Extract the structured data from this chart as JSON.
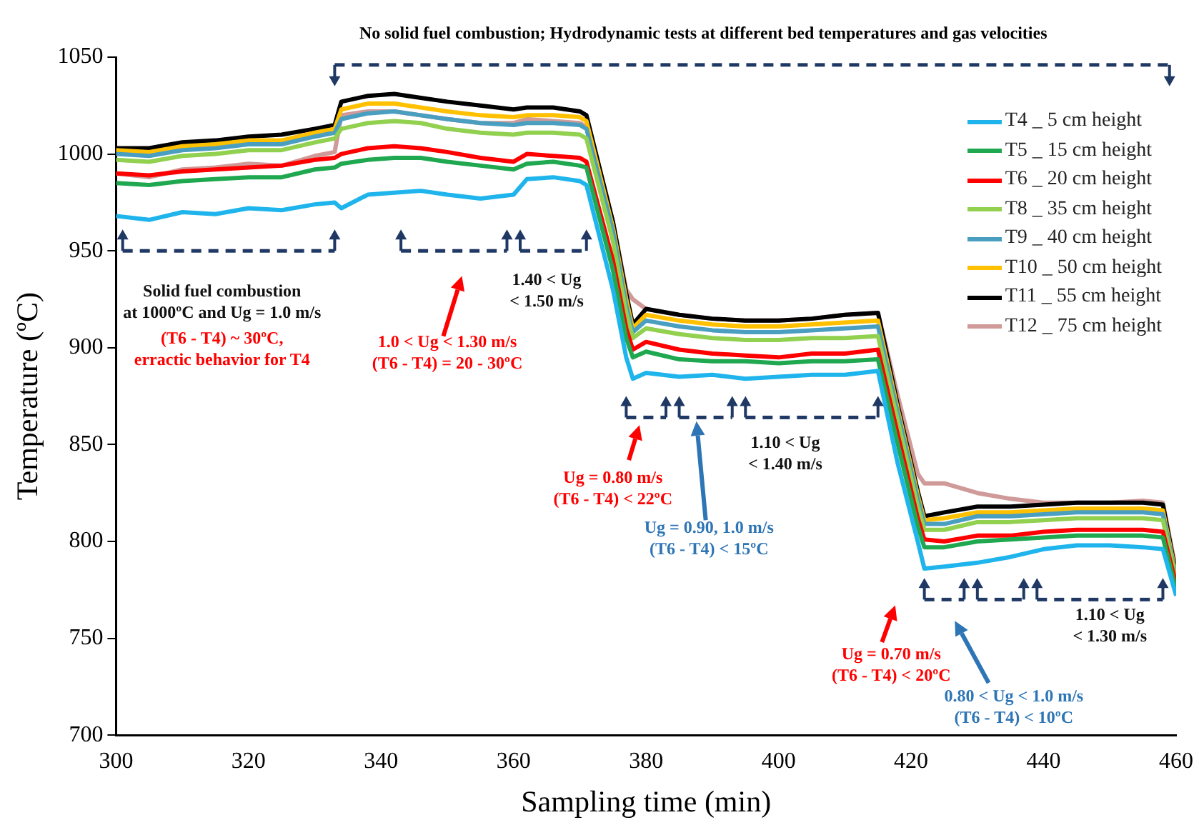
{
  "chart_data": {
    "type": "line",
    "xlabel": "Sampling time (min)",
    "ylabel": "Temperature (ºC)",
    "x": [
      300,
      305,
      310,
      315,
      320,
      325,
      330,
      333,
      334,
      338,
      342,
      346,
      350,
      355,
      360,
      362,
      366,
      370,
      371,
      375,
      377,
      378,
      380,
      385,
      390,
      395,
      400,
      405,
      410,
      415,
      418,
      421,
      422,
      425,
      430,
      435,
      440,
      445,
      450,
      455,
      458,
      460
    ],
    "series": [
      {
        "name": "T4 _ 5 cm height",
        "color": "#1fb5ec",
        "values": [
          968,
          966,
          970,
          969,
          972,
          971,
          974,
          975,
          972,
          979,
          980,
          981,
          979,
          977,
          979,
          987,
          988,
          986,
          984,
          930,
          895,
          884,
          887,
          885,
          886,
          884,
          885,
          886,
          886,
          888,
          840,
          800,
          786,
          787,
          789,
          792,
          796,
          798,
          798,
          797,
          796,
          772
        ]
      },
      {
        "name": "T5 _ 15 cm height",
        "color": "#1fa84f",
        "values": [
          985,
          984,
          986,
          987,
          988,
          988,
          992,
          993,
          995,
          997,
          998,
          998,
          996,
          994,
          992,
          995,
          996,
          994,
          993,
          940,
          905,
          895,
          898,
          894,
          893,
          893,
          892,
          893,
          893,
          894,
          850,
          808,
          797,
          797,
          800,
          801,
          802,
          803,
          803,
          803,
          802,
          775
        ]
      },
      {
        "name": "T6 _ 20 cm height",
        "color": "#ff0000",
        "values": [
          990,
          989,
          991,
          992,
          993,
          994,
          997,
          998,
          1000,
          1003,
          1004,
          1003,
          1001,
          998,
          996,
          1000,
          999,
          998,
          996,
          945,
          910,
          899,
          903,
          899,
          897,
          896,
          895,
          897,
          897,
          899,
          855,
          812,
          801,
          800,
          803,
          803,
          805,
          806,
          806,
          806,
          805,
          778
        ]
      },
      {
        "name": "T8 _ 35 cm height",
        "color": "#92d050",
        "values": [
          997,
          996,
          999,
          1000,
          1002,
          1002,
          1006,
          1008,
          1013,
          1016,
          1017,
          1016,
          1013,
          1011,
          1010,
          1011,
          1011,
          1010,
          1008,
          955,
          918,
          905,
          910,
          907,
          905,
          904,
          904,
          905,
          905,
          906,
          862,
          818,
          806,
          806,
          810,
          810,
          811,
          812,
          812,
          812,
          811,
          780
        ]
      },
      {
        "name": "T9 _ 40 cm height",
        "color": "#4a9fc0",
        "values": [
          1000,
          999,
          1002,
          1003,
          1005,
          1005,
          1009,
          1011,
          1018,
          1021,
          1022,
          1020,
          1018,
          1016,
          1015,
          1016,
          1016,
          1015,
          1013,
          960,
          922,
          908,
          914,
          911,
          909,
          908,
          908,
          909,
          910,
          911,
          866,
          822,
          809,
          809,
          813,
          813,
          814,
          815,
          815,
          815,
          814,
          781
        ]
      },
      {
        "name": "T10 _ 50 cm height",
        "color": "#ffc000",
        "values": [
          1002,
          1001,
          1004,
          1005,
          1007,
          1007,
          1011,
          1013,
          1023,
          1026,
          1026,
          1024,
          1022,
          1020,
          1019,
          1020,
          1020,
          1019,
          1017,
          962,
          925,
          910,
          917,
          914,
          912,
          911,
          911,
          912,
          913,
          914,
          868,
          824,
          811,
          812,
          815,
          815,
          816,
          817,
          817,
          817,
          816,
          782
        ]
      },
      {
        "name": "T11 _ 55 cm height",
        "color": "#000000",
        "values": [
          1003,
          1003,
          1006,
          1007,
          1009,
          1010,
          1013,
          1015,
          1027,
          1030,
          1031,
          1029,
          1027,
          1025,
          1023,
          1024,
          1024,
          1022,
          1020,
          965,
          928,
          912,
          920,
          917,
          915,
          914,
          914,
          915,
          917,
          918,
          870,
          826,
          813,
          815,
          818,
          818,
          819,
          820,
          820,
          820,
          819,
          783
        ]
      },
      {
        "name": "T12 _ 75 cm height",
        "color": "#d09a98",
        "values": [
          990,
          988,
          992,
          993,
          995,
          994,
          999,
          1001,
          1020,
          1022,
          1022,
          1020,
          1018,
          1016,
          1016,
          1018,
          1017,
          1016,
          1014,
          965,
          930,
          925,
          920,
          917,
          915,
          914,
          914,
          915,
          917,
          918,
          875,
          835,
          830,
          830,
          825,
          822,
          820,
          820,
          820,
          821,
          820,
          785
        ]
      }
    ],
    "xlim": [
      300,
      460
    ],
    "xticks": [
      300,
      320,
      340,
      360,
      380,
      400,
      420,
      440,
      460
    ],
    "ylim": [
      700,
      1050
    ],
    "yticks": [
      700,
      750,
      800,
      850,
      900,
      950,
      1000,
      1050
    ],
    "grid": false,
    "legend": "top right",
    "marker": "none",
    "line_style": "solid",
    "annotations": [
      "No solid fuel combustion; Hydrodynamic tests at different bed temperatures and gas velocities",
      "Solid fuel combustion\nat 1000ºC and Ug = 1.0 m/s",
      "(T6 - T4) ~ 30ºC,\nerractic behavior for T4",
      "1.0 < Ug < 1.30 m/s\n(T6 - T4) = 20 - 30ºC",
      "1.40 < Ug\n< 1.50 m/s",
      "Ug = 0.80 m/s\n(T6 - T4) < 22ºC",
      "Ug = 0.90, 1.0 m/s\n(T6 - T4) < 15ºC",
      "1.10 < Ug\n< 1.40 m/s",
      "Ug = 0.70 m/s\n(T6 - T4) < 20ºC",
      "0.80 < Ug < 1.0 m/s\n(T6 - T4) < 10ºC",
      "1.10 < Ug\n< 1.30 m/s"
    ]
  }
}
